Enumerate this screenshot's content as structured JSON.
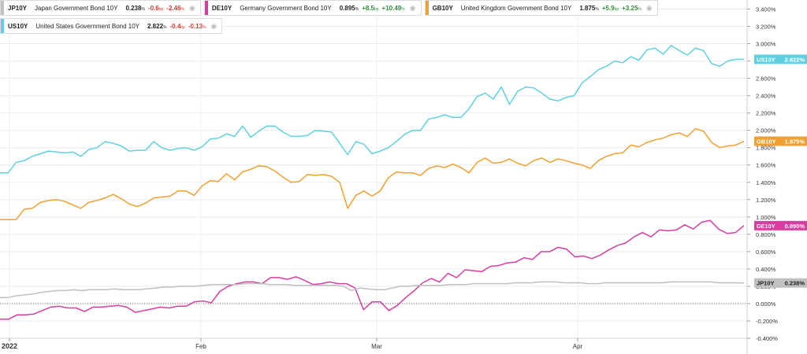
{
  "legend": [
    {
      "symbol": "JP10Y",
      "name": "Japan Government Bond 10Y",
      "value": "0.238",
      "unit": "%",
      "change_bp": "-0.6",
      "bp_unit": "bp",
      "change_pct": "-2.46",
      "pct_unit": "%",
      "direction": "neg",
      "color": "#c0c0c0"
    },
    {
      "symbol": "DE10Y",
      "name": "Germany Government Bond 10Y",
      "value": "0.895",
      "unit": "%",
      "change_bp": "+8.5",
      "bp_unit": "bp",
      "change_pct": "+10.49",
      "pct_unit": "%",
      "direction": "pos",
      "color": "#d63fa0"
    },
    {
      "symbol": "GB10Y",
      "name": "United Kingdom Government Bond 10Y",
      "value": "1.875",
      "unit": "%",
      "change_bp": "+5.9",
      "bp_unit": "bp",
      "change_pct": "+3.25",
      "pct_unit": "%",
      "direction": "pos",
      "color": "#f0a030"
    },
    {
      "symbol": "US10Y",
      "name": "United States Government Bond 10Y",
      "value": "2.822",
      "unit": "%",
      "change_bp": "-0.4",
      "bp_unit": "bp",
      "change_pct": "-0.13",
      "pct_unit": "%",
      "direction": "neg",
      "color": "#5fd0e0"
    }
  ],
  "icons": {
    "visibility": "eye-icon"
  },
  "chart_data": {
    "type": "line",
    "x_ticks": [
      "2022",
      "Feb",
      "Mar",
      "Apr"
    ],
    "y_ticks": [
      "3.400%",
      "3.200%",
      "3.000%",
      "2.800%",
      "2.600%",
      "2.400%",
      "2.200%",
      "2.000%",
      "1.800%",
      "1.600%",
      "1.400%",
      "1.200%",
      "1.000%",
      "0.800%",
      "0.600%",
      "0.400%",
      "0.200%",
      "0.000%",
      "-0.200%",
      "-0.400%"
    ],
    "ylim": [
      -0.4,
      3.45
    ],
    "grid": true,
    "zero_line": true,
    "x_tick_positions": [
      3,
      42,
      80,
      123
    ],
    "x_range": [
      0,
      160
    ],
    "series": [
      {
        "name": "US10Y",
        "color": "#5fd0e0",
        "last_label": "2.822%",
        "values": [
          1.51,
          1.51,
          1.63,
          1.65,
          1.7,
          1.73,
          1.76,
          1.75,
          1.74,
          1.75,
          1.7,
          1.78,
          1.8,
          1.87,
          1.85,
          1.82,
          1.76,
          1.77,
          1.77,
          1.87,
          1.8,
          1.77,
          1.79,
          1.8,
          1.77,
          1.81,
          1.9,
          1.91,
          1.96,
          1.93,
          2.05,
          1.92,
          1.99,
          2.05,
          2.05,
          1.98,
          1.93,
          1.93,
          1.94,
          2.0,
          1.99,
          1.98,
          1.85,
          1.72,
          1.87,
          1.84,
          1.73,
          1.76,
          1.8,
          1.87,
          1.95,
          2.0,
          2.0,
          2.13,
          2.15,
          2.18,
          2.15,
          2.15,
          2.25,
          2.39,
          2.43,
          2.36,
          2.5,
          2.3,
          2.45,
          2.5,
          2.49,
          2.43,
          2.36,
          2.34,
          2.38,
          2.4,
          2.55,
          2.62,
          2.7,
          2.74,
          2.8,
          2.78,
          2.85,
          2.81,
          2.93,
          2.95,
          2.88,
          2.98,
          2.92,
          2.87,
          2.95,
          2.92,
          2.77,
          2.74,
          2.8,
          2.82,
          2.82
        ]
      },
      {
        "name": "GB10Y",
        "color": "#f0a030",
        "last_label": "1.875%",
        "values": [
          0.97,
          0.97,
          0.97,
          1.09,
          1.1,
          1.17,
          1.19,
          1.2,
          1.18,
          1.14,
          1.1,
          1.17,
          1.19,
          1.22,
          1.26,
          1.21,
          1.15,
          1.12,
          1.16,
          1.22,
          1.23,
          1.24,
          1.3,
          1.3,
          1.25,
          1.36,
          1.42,
          1.41,
          1.5,
          1.43,
          1.52,
          1.55,
          1.59,
          1.58,
          1.53,
          1.46,
          1.4,
          1.41,
          1.49,
          1.48,
          1.49,
          1.47,
          1.4,
          1.1,
          1.25,
          1.3,
          1.24,
          1.3,
          1.45,
          1.52,
          1.51,
          1.51,
          1.48,
          1.56,
          1.59,
          1.57,
          1.61,
          1.57,
          1.51,
          1.63,
          1.68,
          1.62,
          1.63,
          1.67,
          1.62,
          1.59,
          1.65,
          1.68,
          1.63,
          1.67,
          1.65,
          1.62,
          1.6,
          1.56,
          1.65,
          1.7,
          1.73,
          1.74,
          1.83,
          1.81,
          1.86,
          1.89,
          1.91,
          1.95,
          1.97,
          1.93,
          2.02,
          1.99,
          1.86,
          1.8,
          1.82,
          1.83,
          1.875
        ]
      },
      {
        "name": "DE10Y",
        "color": "#d63fa0",
        "last_label": "0.895%",
        "values": [
          -0.18,
          -0.18,
          -0.13,
          -0.13,
          -0.12,
          -0.08,
          -0.04,
          -0.03,
          -0.05,
          -0.05,
          -0.09,
          -0.04,
          -0.04,
          -0.03,
          -0.02,
          -0.04,
          -0.1,
          -0.08,
          -0.06,
          -0.04,
          -0.05,
          -0.03,
          -0.03,
          0.02,
          0.03,
          0.01,
          0.14,
          0.2,
          0.23,
          0.25,
          0.25,
          0.23,
          0.3,
          0.3,
          0.28,
          0.31,
          0.27,
          0.22,
          0.23,
          0.25,
          0.23,
          0.23,
          0.18,
          -0.07,
          0.02,
          0.02,
          -0.08,
          -0.02,
          0.07,
          0.15,
          0.24,
          0.29,
          0.25,
          0.35,
          0.3,
          0.39,
          0.38,
          0.37,
          0.43,
          0.44,
          0.47,
          0.48,
          0.53,
          0.51,
          0.6,
          0.6,
          0.65,
          0.63,
          0.54,
          0.55,
          0.52,
          0.56,
          0.62,
          0.67,
          0.7,
          0.77,
          0.82,
          0.77,
          0.85,
          0.84,
          0.85,
          0.91,
          0.86,
          0.94,
          0.96,
          0.86,
          0.81,
          0.82,
          0.9
        ]
      },
      {
        "name": "JP10Y",
        "color": "#c0c0c0",
        "last_label": "0.238%",
        "values": [
          0.07,
          0.07,
          0.09,
          0.1,
          0.11,
          0.13,
          0.14,
          0.15,
          0.15,
          0.16,
          0.15,
          0.16,
          0.16,
          0.16,
          0.17,
          0.16,
          0.16,
          0.16,
          0.17,
          0.18,
          0.19,
          0.19,
          0.2,
          0.2,
          0.2,
          0.21,
          0.22,
          0.22,
          0.22,
          0.22,
          0.23,
          0.23,
          0.23,
          0.22,
          0.22,
          0.22,
          0.21,
          0.21,
          0.21,
          0.21,
          0.21,
          0.21,
          0.2,
          0.15,
          0.18,
          0.17,
          0.16,
          0.16,
          0.18,
          0.2,
          0.2,
          0.21,
          0.21,
          0.21,
          0.21,
          0.22,
          0.22,
          0.22,
          0.23,
          0.23,
          0.23,
          0.23,
          0.23,
          0.24,
          0.24,
          0.24,
          0.25,
          0.25,
          0.25,
          0.24,
          0.24,
          0.24,
          0.23,
          0.23,
          0.24,
          0.24,
          0.24,
          0.24,
          0.24,
          0.24,
          0.24,
          0.24,
          0.25,
          0.25,
          0.25,
          0.25,
          0.25,
          0.25,
          0.24,
          0.24,
          0.24,
          0.238
        ]
      }
    ]
  }
}
